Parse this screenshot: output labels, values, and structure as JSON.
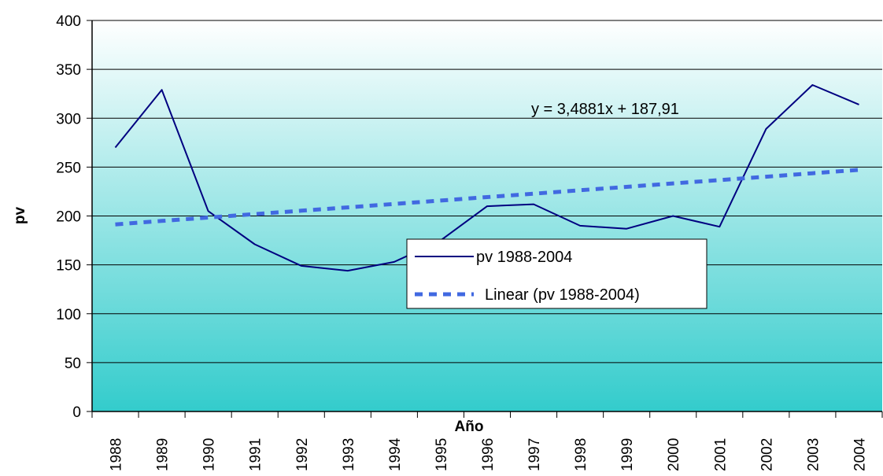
{
  "chart_data": {
    "type": "line",
    "title": "",
    "xlabel": "Año",
    "ylabel": "pv",
    "ylim": [
      0,
      400
    ],
    "yticks": [
      "0",
      "50",
      "100",
      "150",
      "200",
      "250",
      "300",
      "350",
      "400"
    ],
    "categories": [
      "1988",
      "1989",
      "1990",
      "1991",
      "1992",
      "1993",
      "1994",
      "1995",
      "1996",
      "1997",
      "1998",
      "1999",
      "2000",
      "2001",
      "2002",
      "2003",
      "2004"
    ],
    "series": [
      {
        "name": "pv 1988-2004",
        "values": [
          270,
          329,
          205,
          171,
          149,
          144,
          153,
          175,
          210,
          212,
          190,
          187,
          200,
          189,
          289,
          334,
          314
        ],
        "color": "#000080",
        "style": "solid"
      },
      {
        "name": "Linear (pv 1988-2004)",
        "values": [
          191.4,
          194.9,
          198.4,
          201.9,
          205.4,
          208.8,
          212.3,
          215.8,
          219.3,
          222.8,
          226.3,
          229.8,
          233.3,
          236.7,
          240.2,
          243.7,
          247.2
        ],
        "color": "#4169E1",
        "style": "dashed"
      }
    ],
    "annotation": "y = 3,4881x + 187,91",
    "grid": true,
    "legend_position": "center-right",
    "background_gradient": [
      "#ffffff",
      "#33CCCC"
    ]
  }
}
